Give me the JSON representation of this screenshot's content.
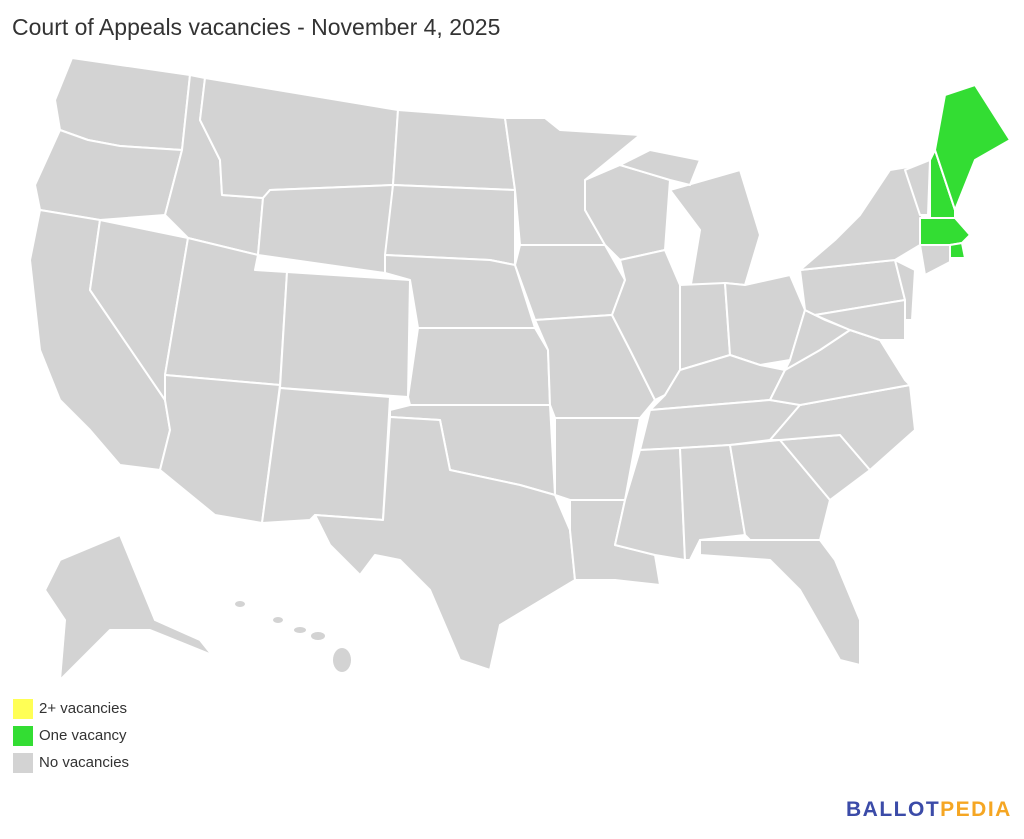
{
  "title": "Court of Appeals vacancies - November 4, 2025",
  "colors": {
    "two_plus": "#ffff55",
    "one": "#33dd33",
    "none": "#d3d3d3",
    "brand_blue": "#3b4ba8",
    "brand_orange": "#f5a623"
  },
  "legend": [
    {
      "label": "2+ vacancies",
      "status": "two_plus"
    },
    {
      "label": "One vacancy",
      "status": "one"
    },
    {
      "label": "No vacancies",
      "status": "none"
    }
  ],
  "states": {
    "WA": "none",
    "OR": "none",
    "CA": "none",
    "NV": "none",
    "ID": "none",
    "MT": "none",
    "WY": "none",
    "UT": "none",
    "CO": "none",
    "AZ": "none",
    "NM": "none",
    "ND": "none",
    "SD": "none",
    "NE": "none",
    "KS": "none",
    "OK": "none",
    "TX": "none",
    "MN": "none",
    "IA": "none",
    "MO": "none",
    "AR": "none",
    "LA": "none",
    "WI": "none",
    "IL": "none",
    "MI": "none",
    "MIU": "none",
    "IN": "none",
    "OH": "none",
    "KY": "none",
    "TN": "none",
    "MS": "none",
    "AL": "none",
    "GA": "none",
    "FL": "none",
    "SC": "none",
    "NC": "none",
    "VA": "none",
    "WV": "none",
    "PA": "none",
    "NY": "none",
    "VT": "none",
    "NH": "one",
    "ME": "one",
    "MA": "one",
    "RI": "one",
    "CT": "none",
    "NJ": "none",
    "MD": "none",
    "AK": "none"
  },
  "logo": {
    "part1": "BALLOT",
    "part2": "PEDIA"
  }
}
